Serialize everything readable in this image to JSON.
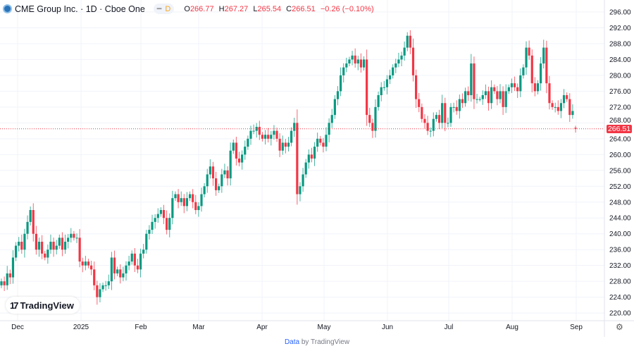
{
  "header": {
    "symbol": "CME Group Inc.",
    "interval": "1D",
    "exchange": "Cboe One",
    "title": "CME Group Inc. · 1D · Cboe One",
    "badge": "D",
    "open_label": "O",
    "open": "266.77",
    "high_label": "H",
    "high": "267.27",
    "low_label": "L",
    "low": "265.54",
    "close_label": "C",
    "close": "266.51",
    "change": "−0.26 (−0.10%)"
  },
  "last_price": "266.51",
  "logo_text": "TradingView",
  "footer": {
    "link": "Data",
    "text": " by TradingView"
  },
  "colors": {
    "up": "#089981",
    "down": "#f23645",
    "grid": "#f0f3fa"
  },
  "chart_data": {
    "type": "candlestick",
    "ylim": [
      218,
      298
    ],
    "y_ticks": [
      "220.00",
      "224.00",
      "228.00",
      "232.00",
      "236.00",
      "240.00",
      "244.00",
      "248.00",
      "252.00",
      "256.00",
      "260.00",
      "264.00",
      "268.00",
      "272.00",
      "276.00",
      "280.00",
      "284.00",
      "288.00",
      "292.00",
      "296.00"
    ],
    "x_ticks": [
      "Dec",
      "2025",
      "Feb",
      "Mar",
      "Apr",
      "May",
      "Jun",
      "Jul",
      "Aug",
      "Sep"
    ],
    "grid": true,
    "last_bar": {
      "open": 266.77,
      "high": 267.27,
      "low": 265.54,
      "close": 266.51
    },
    "closes": [
      228,
      227,
      230,
      229,
      234,
      237,
      238,
      236,
      240,
      243,
      246,
      240,
      236,
      238,
      235,
      234,
      236,
      238,
      236,
      237,
      239,
      236,
      238,
      239,
      240,
      239,
      239,
      233,
      232,
      233,
      232,
      231,
      227,
      224,
      226,
      227,
      227,
      228,
      234,
      230,
      231,
      229,
      230,
      232,
      233,
      235,
      232,
      231,
      235,
      236,
      240,
      241,
      243,
      244,
      245,
      246,
      244,
      241,
      244,
      249,
      250,
      248,
      249,
      247,
      249,
      250,
      248,
      246,
      247,
      250,
      252,
      255,
      257,
      254,
      251,
      252,
      255,
      256,
      254,
      261,
      263,
      259,
      258,
      260,
      262,
      264,
      266,
      266,
      267,
      265,
      264,
      265,
      264,
      265,
      266,
      264,
      261,
      263,
      262,
      263,
      266,
      268,
      250,
      252,
      255,
      258,
      260,
      259,
      262,
      264,
      263,
      262,
      265,
      268,
      270,
      274,
      276,
      280,
      282,
      283,
      284,
      285,
      283,
      284,
      282,
      284,
      270,
      268,
      266,
      272,
      275,
      277,
      277,
      279,
      280,
      282,
      283,
      284,
      285,
      287,
      290,
      287,
      280,
      274,
      272,
      269,
      268,
      266,
      266,
      269,
      270,
      268,
      273,
      268,
      268,
      272,
      272,
      271,
      274,
      273,
      276,
      275,
      283,
      274,
      274,
      274,
      275,
      276,
      273,
      277,
      276,
      274,
      276,
      272,
      276,
      277,
      278,
      277,
      276,
      280,
      282,
      287,
      285,
      278,
      276,
      278,
      283,
      287,
      278,
      273,
      272,
      272,
      271,
      273,
      275,
      274,
      270,
      271,
      266.51
    ]
  }
}
